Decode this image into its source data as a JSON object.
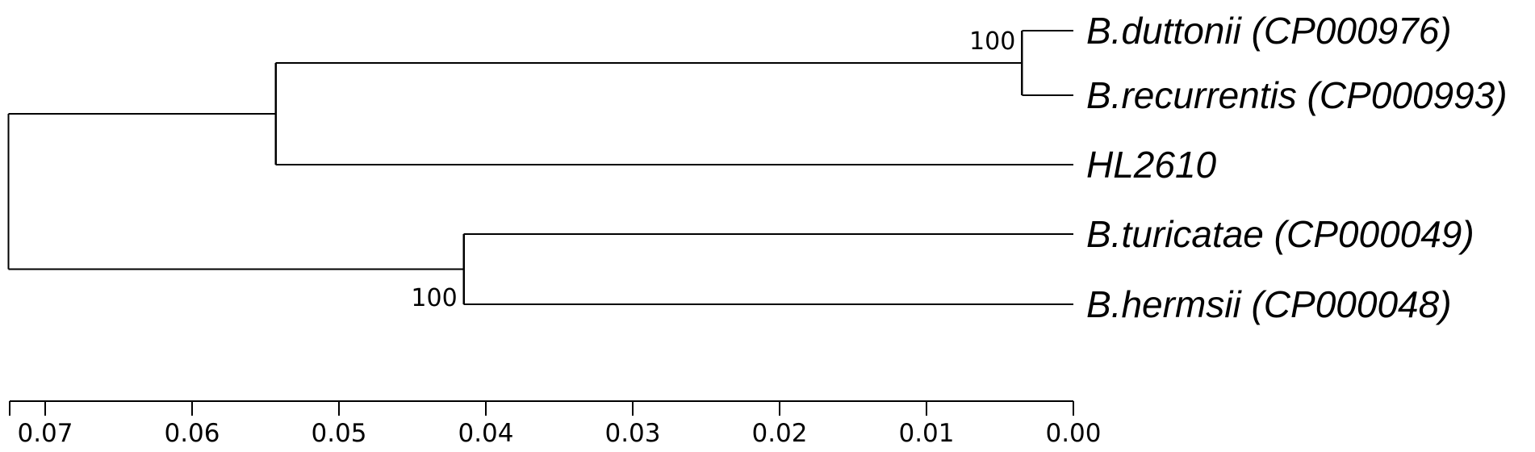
{
  "tree": {
    "taxa": [
      "B.duttonii (CP000976)",
      "B.recurrentis (CP000993)",
      "HL2610",
      "B.turicatae (CP000049)",
      "B.hermsii (CP000048)"
    ],
    "newick": "(((B.duttonii,B.recurrentis)100:0.051,HL2610:0.0545):0.0185,((B.turicatae,B.hermsii)100:0.0305):0.0185);",
    "nodes": [
      {
        "id": "root",
        "height": 0.0725,
        "children": [
          "n1",
          "n2"
        ],
        "bootstrap": ""
      },
      {
        "id": "n1",
        "height": 0.0543,
        "children": [
          "n3",
          "t2"
        ],
        "bootstrap": ""
      },
      {
        "id": "n3",
        "height": 0.0035,
        "children": [
          "t0",
          "t1"
        ],
        "bootstrap": "100"
      },
      {
        "id": "n2",
        "height": 0.0415,
        "children": [
          "t3",
          "t4"
        ],
        "bootstrap": "100"
      }
    ],
    "leaves": [
      {
        "id": "t0",
        "height": 0,
        "taxon": 0
      },
      {
        "id": "t1",
        "height": 0,
        "taxon": 1
      },
      {
        "id": "t2",
        "height": 0,
        "taxon": 2
      },
      {
        "id": "t3",
        "height": 0,
        "taxon": 3
      },
      {
        "id": "t4",
        "height": 0,
        "taxon": 4
      }
    ]
  },
  "scale": {
    "min": 0.0,
    "max": 0.07,
    "ticks": [
      "0.07",
      "0.06",
      "0.05",
      "0.04",
      "0.03",
      "0.02",
      "0.01",
      "0.00"
    ],
    "direction": "decreasing-left-to-right"
  },
  "colors": {
    "line": "#000000",
    "text": "#000000",
    "background": "#ffffff"
  }
}
